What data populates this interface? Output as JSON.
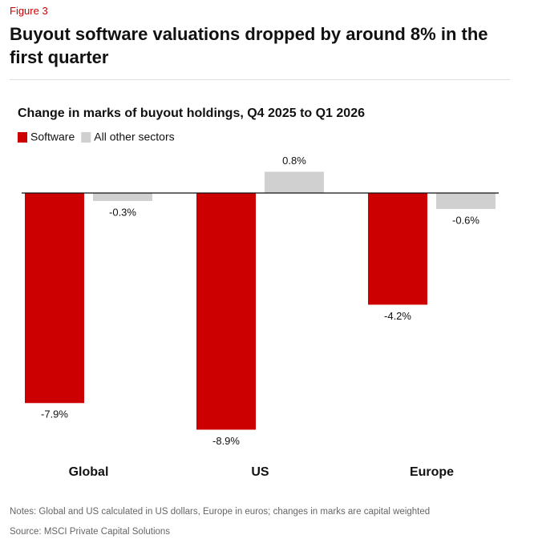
{
  "figure_label": "Figure 3",
  "headline": "Buyout software valuations dropped by around 8% in the first quarter",
  "notes": "Notes: Global and US calculated in US dollars, Europe in euros; changes in marks are capital weighted",
  "source": "Source: MSCI Private Capital Solutions",
  "chart_data": {
    "type": "bar",
    "title": "Change in marks of buyout holdings, Q4 2025 to Q1 2026",
    "categories": [
      "Global",
      "US",
      "Europe"
    ],
    "series": [
      {
        "name": "Software",
        "color": "#cc0000",
        "values": [
          -7.9,
          -8.9,
          -4.2
        ],
        "value_labels": [
          "-7.9%",
          "-8.9%",
          "-4.2%"
        ]
      },
      {
        "name": "All other sectors",
        "color": "#d0d0d0",
        "values": [
          -0.3,
          0.8,
          -0.6
        ],
        "value_labels": [
          "-0.3%",
          "0.8%",
          "-0.6%"
        ]
      }
    ],
    "ylim": [
      -9,
      1
    ]
  }
}
